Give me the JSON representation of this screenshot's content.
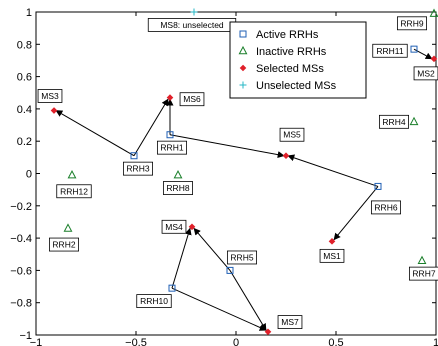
{
  "chart_data": {
    "type": "scatter",
    "xlim": [
      -1,
      1
    ],
    "ylim": [
      -1,
      1
    ],
    "x_ticks": [
      -1,
      -0.5,
      0,
      0.5,
      1
    ],
    "y_ticks": [
      1,
      0.8,
      0.6,
      0.4,
      0.2,
      0,
      -0.2,
      -0.4,
      -0.6,
      -0.8,
      -1
    ],
    "x_tick_labels": [
      "−1",
      "−0.5",
      "0",
      "0.5",
      "1"
    ],
    "y_tick_labels": [
      "1",
      "0.8",
      "0.6",
      "0.4",
      "0.2",
      "0",
      "−0.2",
      "−0.4",
      "−0.6",
      "−0.8",
      "−1"
    ],
    "grid": false,
    "legend_position": "top-right",
    "colors": {
      "active": "#1f5fb4",
      "inactive": "#1a7f2a",
      "selected": "#e0202a",
      "unselected": "#25b7c6",
      "axis": "#000000",
      "arrow": "#000000"
    },
    "series": [
      {
        "name": "Active RRHs",
        "marker": "square",
        "color": "#1f5fb4",
        "points": [
          {
            "label": "RRH1",
            "x": -0.33,
            "y": 0.24
          },
          {
            "label": "RRH3",
            "x": -0.51,
            "y": 0.11
          },
          {
            "label": "RRH5",
            "x": -0.03,
            "y": -0.6
          },
          {
            "label": "RRH6",
            "x": 0.71,
            "y": -0.08
          },
          {
            "label": "RRH10",
            "x": -0.32,
            "y": -0.71
          },
          {
            "label": "RRH11",
            "x": 0.89,
            "y": 0.77
          }
        ]
      },
      {
        "name": "Inactive RRHs",
        "marker": "triangle",
        "color": "#1a7f2a",
        "points": [
          {
            "label": "RRH2",
            "x": -0.84,
            "y": -0.34
          },
          {
            "label": "RRH4",
            "x": 0.89,
            "y": 0.32
          },
          {
            "label": "RRH7",
            "x": 0.93,
            "y": -0.54
          },
          {
            "label": "RRH8",
            "x": -0.29,
            "y": -0.01
          },
          {
            "label": "RRH9",
            "x": 0.99,
            "y": 0.99
          },
          {
            "label": "RRH12",
            "x": -0.82,
            "y": -0.01
          }
        ]
      },
      {
        "name": "Selected MSs",
        "marker": "diamond",
        "color": "#e0202a",
        "points": [
          {
            "label": "MS1",
            "x": 0.48,
            "y": -0.42
          },
          {
            "label": "MS2",
            "x": 0.99,
            "y": 0.71
          },
          {
            "label": "MS3",
            "x": -0.91,
            "y": 0.39
          },
          {
            "label": "MS4",
            "x": -0.22,
            "y": -0.33
          },
          {
            "label": "MS5",
            "x": 0.25,
            "y": 0.11
          },
          {
            "label": "MS6",
            "x": -0.33,
            "y": 0.47
          },
          {
            "label": "MS7",
            "x": 0.16,
            "y": -0.98
          }
        ]
      },
      {
        "name": "Unselected MSs",
        "marker": "plus",
        "color": "#25b7c6",
        "points": [
          {
            "label": "MS8: unselected",
            "x": -0.21,
            "y": 1.0
          }
        ]
      }
    ],
    "label_boxes": [
      {
        "text": "RRH9",
        "x": 0.88,
        "y": 0.93
      },
      {
        "text": "RRH11",
        "x": 0.77,
        "y": 0.76
      },
      {
        "text": "MS2",
        "x": 0.95,
        "y": 0.62
      },
      {
        "text": "MS8: unselected",
        "x": -0.22,
        "y": 0.92
      },
      {
        "text": "MS3",
        "x": -0.93,
        "y": 0.48
      },
      {
        "text": "MS6",
        "x": -0.22,
        "y": 0.46
      },
      {
        "text": "RRH1",
        "x": -0.32,
        "y": 0.16
      },
      {
        "text": "MS5",
        "x": 0.28,
        "y": 0.24
      },
      {
        "text": "RRH4",
        "x": 0.79,
        "y": 0.32
      },
      {
        "text": "RRH3",
        "x": -0.49,
        "y": 0.03
      },
      {
        "text": "RRH12",
        "x": -0.81,
        "y": -0.11
      },
      {
        "text": "RRH8",
        "x": -0.29,
        "y": -0.09
      },
      {
        "text": "RRH6",
        "x": 0.75,
        "y": -0.21
      },
      {
        "text": "MS4",
        "x": -0.31,
        "y": -0.33
      },
      {
        "text": "RRH2",
        "x": -0.86,
        "y": -0.44
      },
      {
        "text": "MS1",
        "x": 0.48,
        "y": -0.51
      },
      {
        "text": "RRH5",
        "x": 0.03,
        "y": -0.52
      },
      {
        "text": "RRH7",
        "x": 0.94,
        "y": -0.62
      },
      {
        "text": "RRH10",
        "x": -0.41,
        "y": -0.79
      },
      {
        "text": "MS7",
        "x": 0.27,
        "y": -0.92
      }
    ],
    "arrows": [
      {
        "from": [
          -0.33,
          0.24
        ],
        "to": [
          -0.33,
          0.46
        ]
      },
      {
        "from": [
          -0.33,
          0.24
        ],
        "to": [
          0.24,
          0.11
        ]
      },
      {
        "from": [
          -0.51,
          0.11
        ],
        "to": [
          -0.9,
          0.39
        ]
      },
      {
        "from": [
          -0.51,
          0.11
        ],
        "to": [
          -0.34,
          0.46
        ]
      },
      {
        "from": [
          0.71,
          -0.08
        ],
        "to": [
          0.26,
          0.11
        ]
      },
      {
        "from": [
          0.71,
          -0.08
        ],
        "to": [
          0.49,
          -0.41
        ]
      },
      {
        "from": [
          0.89,
          0.77
        ],
        "to": [
          0.98,
          0.71
        ]
      },
      {
        "from": [
          -0.03,
          -0.6
        ],
        "to": [
          -0.21,
          -0.34
        ]
      },
      {
        "from": [
          -0.03,
          -0.6
        ],
        "to": [
          0.15,
          -0.97
        ]
      },
      {
        "from": [
          -0.32,
          -0.71
        ],
        "to": [
          -0.23,
          -0.34
        ]
      },
      {
        "from": [
          -0.32,
          -0.71
        ],
        "to": [
          0.15,
          -0.97
        ]
      }
    ]
  }
}
